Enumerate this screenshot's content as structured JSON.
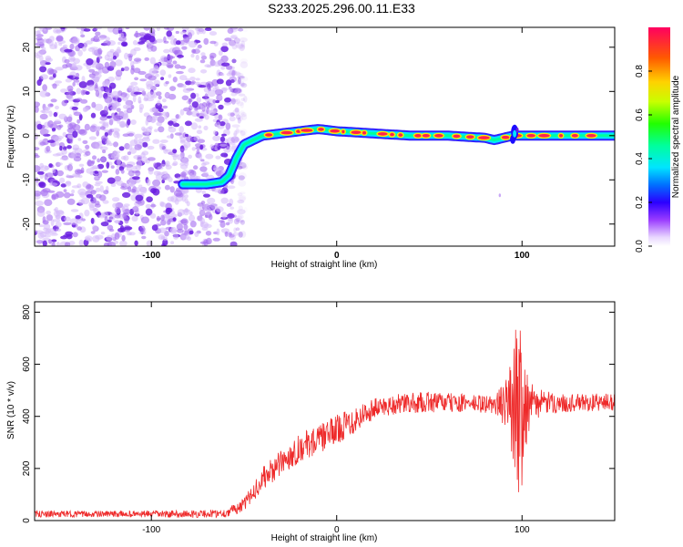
{
  "title": "S233.2025.296.00.11.E33",
  "colors": {
    "snr_line": "#ee2a2a",
    "dots": "#7a3de0",
    "frame": "#000000"
  },
  "chart_data": [
    {
      "type": "heatmap",
      "xlabel": "Height of straight line (km)",
      "ylabel": "Frequency (Hz)",
      "xlim": [
        -163,
        150
      ],
      "ylim": [
        -25,
        24.5
      ],
      "xticks": [
        -100,
        0,
        100
      ],
      "xtick_labels": [
        "-100",
        "0",
        "100"
      ],
      "yticks": [
        -20,
        -10,
        0,
        10,
        20
      ],
      "ytick_labels": [
        "-20",
        "-10",
        "0",
        "10",
        "20"
      ],
      "noise_region_x": [
        -163,
        -58
      ],
      "ridge": {
        "description": "Doppler-shifted echo trace",
        "x": [
          -83,
          -70,
          -62,
          -58,
          -54,
          -50,
          -45,
          -40,
          -30,
          -20,
          -10,
          0,
          20,
          40,
          60,
          80,
          85,
          90,
          95,
          100,
          120,
          150
        ],
        "freq": [
          -11,
          -11,
          -10.5,
          -9,
          -5,
          -2,
          -1,
          0,
          0.5,
          1,
          1.5,
          1,
          0.5,
          0,
          0,
          -0.5,
          -1,
          -0.5,
          0,
          0,
          0,
          0
        ],
        "amplitude": [
          0.35,
          0.35,
          0.4,
          0.45,
          0.5,
          0.55,
          0.6,
          0.65,
          0.75,
          0.8,
          0.8,
          0.9,
          0.8,
          0.85,
          0.9,
          0.9,
          0.5,
          0.6,
          0.45,
          0.9,
          0.9,
          0.85
        ]
      },
      "colorbar": {
        "label": "Normalized spectral amplitude",
        "ticks": [
          0.0,
          0.2,
          0.4,
          0.6,
          0.8
        ],
        "tick_labels": [
          "0.0",
          "0.2",
          "0.4",
          "0.6",
          "0.8"
        ],
        "range": [
          0,
          1
        ]
      }
    },
    {
      "type": "line",
      "xlabel": "Height of straight line (km)",
      "ylabel": "SNR (10 * v/v)",
      "xlim": [
        -163,
        150
      ],
      "ylim": [
        0,
        840
      ],
      "xticks": [
        -100,
        0,
        100
      ],
      "xtick_labels": [
        "-100",
        "0",
        "100"
      ],
      "yticks": [
        0,
        200,
        400,
        600,
        800
      ],
      "ytick_labels": [
        "0",
        "200",
        "400",
        "600",
        "800"
      ],
      "series": [
        {
          "name": "SNR",
          "x": [
            -163,
            -120,
            -80,
            -60,
            -50,
            -45,
            -40,
            -30,
            -20,
            -10,
            0,
            10,
            20,
            30,
            50,
            70,
            85,
            92,
            96,
            98,
            100,
            102,
            106,
            120,
            150
          ],
          "mean": [
            25,
            25,
            25,
            28,
            60,
            110,
            160,
            220,
            280,
            310,
            350,
            390,
            430,
            445,
            455,
            450,
            445,
            450,
            460,
            450,
            455,
            450,
            450,
            450,
            455
          ],
          "noise": [
            12,
            12,
            14,
            16,
            25,
            35,
            45,
            50,
            55,
            55,
            55,
            55,
            40,
            40,
            40,
            35,
            35,
            100,
            260,
            380,
            320,
            180,
            60,
            35,
            35
          ]
        }
      ]
    }
  ]
}
